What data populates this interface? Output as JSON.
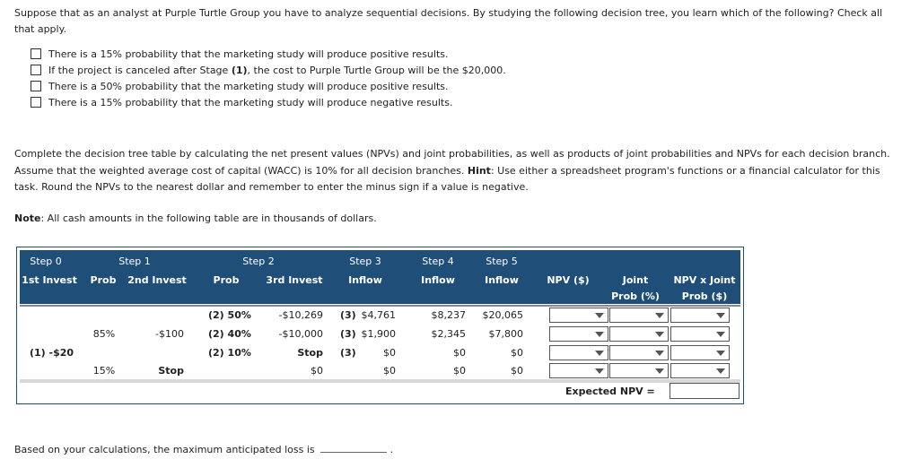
{
  "intro": {
    "text": "Suppose that as an analyst at Purple Turtle Group you have to analyze sequential decisions. By studying the following decision tree, you learn which of the following? Check all that apply."
  },
  "checklist": [
    {
      "before": "There is a 15% probability that the marketing study will produce positive results.",
      "bold": "",
      "after": ""
    },
    {
      "before": "If the project is canceled after Stage ",
      "bold": "(1)",
      "after": ", the cost to Purple Turtle Group will be the $20,000."
    },
    {
      "before": "There is a 50% probability that the marketing study will produce positive results.",
      "bold": "",
      "after": ""
    },
    {
      "before": "There is a 15% probability that the marketing study will produce negative results.",
      "bold": "",
      "after": ""
    }
  ],
  "instructions": {
    "before": "Complete the decision tree table by calculating the net present values (NPVs) and joint probabilities, as well as products of joint probabilities and NPVs for each decision branch. Assume that the weighted average cost of capital (WACC) is 10% for all decision branches. ",
    "hint_label": "Hint",
    "after": ": Use either a spreadsheet program's functions or a financial calculator for this task. Round the NPVs to the nearest dollar and remember to enter the minus sign if a value is negative."
  },
  "note": {
    "label": "Note",
    "text": ": All cash amounts in the following table are in thousands of dollars."
  },
  "table": {
    "steps": [
      "Step 0",
      "Step 1",
      "Step 2",
      "Step 3",
      "Step 4",
      "Step 5"
    ],
    "headers": {
      "first_invest": "1st Invest",
      "prob1": "Prob",
      "second_invest": "2nd Invest",
      "prob2": "Prob",
      "third_invest": "3rd Invest",
      "inflow3": "Inflow",
      "inflow4": "Inflow",
      "inflow5": "Inflow",
      "npv": "NPV ($)",
      "joint_line1": "Joint",
      "joint_line2": "Prob (%)",
      "npvx_line1": "NPV x Joint",
      "npvx_line2": "Prob ($)"
    },
    "step0_value": "(1) -$20",
    "branch_positive": {
      "prob": "85%",
      "invest": "-$100"
    },
    "branch_negative": {
      "prob": "15%",
      "invest": "Stop",
      "step3": "$0",
      "step4": "$0",
      "step5": "$0"
    },
    "rows": [
      {
        "prob": "(2) 50%",
        "invest": "-$10,269",
        "s3_label": "(3)",
        "s3_value": "$4,761",
        "s4": "$8,237",
        "s5": "$20,065"
      },
      {
        "prob": "(2) 40%",
        "invest": "-$10,000",
        "s3_label": "(3)",
        "s3_value": "$1,900",
        "s4": "$2,345",
        "s5": "$7,800"
      },
      {
        "prob": "(2) 10%",
        "invest": "Stop",
        "s3_label": "(3)",
        "s3_value": "$0",
        "s4": "$0",
        "s5": "$0"
      }
    ],
    "expected_npv_label": "Expected NPV ="
  },
  "loss": {
    "before": "Based on your calculations, the maximum anticipated loss is",
    "after": "."
  }
}
